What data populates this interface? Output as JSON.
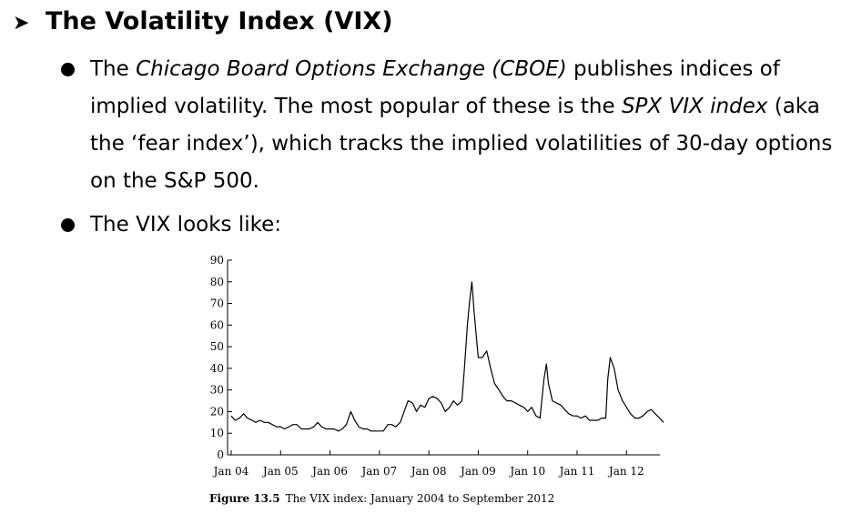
{
  "slide": {
    "heading": "The Volatility Index (VIX)",
    "bullets": [
      {
        "p1": "The ",
        "i1": "Chicago Board Options Exchange (CBOE)",
        "p2": " publishes indices of implied volatility. The most popular of these is the ",
        "i2": "SPX VIX index",
        "p3": " (aka the ‘fear index’), which tracks the implied volatilities of 30-day options on the S&P 500."
      },
      {
        "text": "The VIX looks like:"
      }
    ]
  },
  "chart_data": {
    "type": "line",
    "title": "",
    "caption_label": "Figure 13.5",
    "caption_text": "The VIX index: January 2004 to September 2012",
    "xlabel": "",
    "ylabel": "",
    "ylim": [
      0,
      90
    ],
    "yticks": [
      0,
      10,
      20,
      30,
      40,
      50,
      60,
      70,
      80,
      90
    ],
    "xlim": [
      2004.0,
      2012.75
    ],
    "xticks": [
      {
        "value": 2004,
        "label": "Jan 04"
      },
      {
        "value": 2005,
        "label": "Jan 05"
      },
      {
        "value": 2006,
        "label": "Jan 06"
      },
      {
        "value": 2007,
        "label": "Jan 07"
      },
      {
        "value": 2008,
        "label": "Jan 08"
      },
      {
        "value": 2009,
        "label": "Jan 09"
      },
      {
        "value": 2010,
        "label": "Jan 10"
      },
      {
        "value": 2011,
        "label": "Jan 11"
      },
      {
        "value": 2012,
        "label": "Jan 12"
      }
    ],
    "series": [
      {
        "name": "VIX",
        "x": [
          2004.0,
          2004.08,
          2004.17,
          2004.25,
          2004.33,
          2004.42,
          2004.5,
          2004.58,
          2004.67,
          2004.75,
          2004.83,
          2004.92,
          2005.0,
          2005.08,
          2005.17,
          2005.25,
          2005.33,
          2005.42,
          2005.5,
          2005.58,
          2005.67,
          2005.75,
          2005.83,
          2005.92,
          2006.0,
          2006.08,
          2006.17,
          2006.25,
          2006.33,
          2006.42,
          2006.5,
          2006.58,
          2006.67,
          2006.75,
          2006.83,
          2006.92,
          2007.0,
          2007.08,
          2007.17,
          2007.25,
          2007.33,
          2007.42,
          2007.5,
          2007.58,
          2007.67,
          2007.75,
          2007.83,
          2007.92,
          2008.0,
          2008.08,
          2008.17,
          2008.25,
          2008.33,
          2008.42,
          2008.5,
          2008.58,
          2008.67,
          2008.72,
          2008.78,
          2008.82,
          2008.87,
          2008.92,
          2009.0,
          2009.08,
          2009.17,
          2009.25,
          2009.33,
          2009.42,
          2009.5,
          2009.58,
          2009.67,
          2009.75,
          2009.83,
          2009.92,
          2010.0,
          2010.08,
          2010.17,
          2010.25,
          2010.33,
          2010.38,
          2010.42,
          2010.5,
          2010.58,
          2010.67,
          2010.75,
          2010.83,
          2010.92,
          2011.0,
          2011.08,
          2011.17,
          2011.25,
          2011.33,
          2011.42,
          2011.5,
          2011.58,
          2011.62,
          2011.67,
          2011.75,
          2011.83,
          2011.92,
          2012.0,
          2012.08,
          2012.17,
          2012.25,
          2012.33,
          2012.42,
          2012.5,
          2012.58,
          2012.67,
          2012.75
        ],
        "values": [
          18,
          16,
          17,
          19,
          17,
          16,
          15,
          16,
          15,
          15,
          14,
          13,
          13,
          12,
          13,
          14,
          14,
          12,
          12,
          12,
          13,
          15,
          13,
          12,
          12,
          12,
          11,
          12,
          14,
          20,
          16,
          13,
          12,
          12,
          11,
          11,
          11,
          11,
          14,
          14,
          13,
          15,
          20,
          25,
          24,
          20,
          23,
          22,
          26,
          27,
          26,
          24,
          20,
          22,
          25,
          23,
          25,
          40,
          60,
          70,
          80,
          65,
          45,
          45,
          48,
          40,
          33,
          30,
          27,
          25,
          25,
          24,
          23,
          22,
          20,
          22,
          18,
          17,
          35,
          42,
          33,
          25,
          24,
          23,
          21,
          19,
          18,
          18,
          17,
          18,
          16,
          16,
          16,
          17,
          17,
          35,
          45,
          40,
          30,
          25,
          22,
          19,
          17,
          17,
          18,
          20,
          21,
          19,
          17,
          15
        ]
      }
    ]
  }
}
